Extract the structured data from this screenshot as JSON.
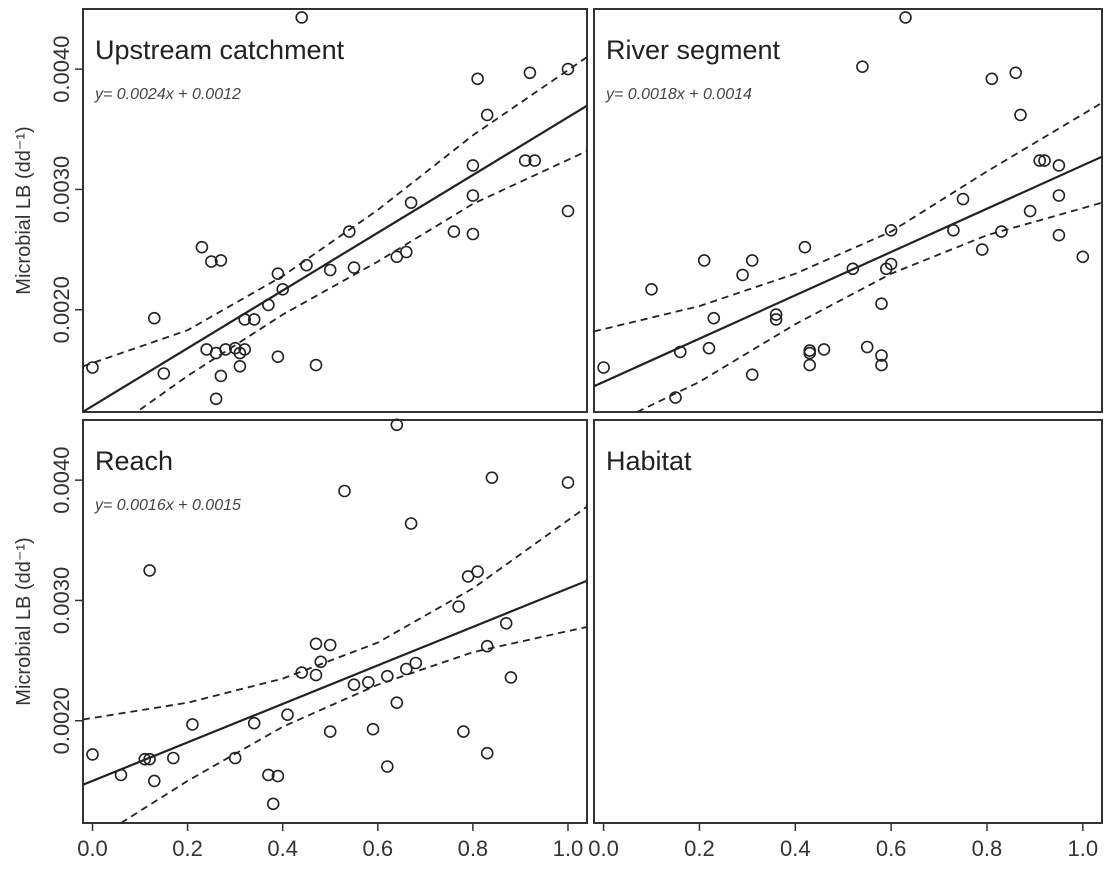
{
  "figure": {
    "background": "#ffffff",
    "ink": "#222222"
  },
  "chart_data": [
    {
      "type": "scatter",
      "title": "Upstream catchment",
      "equation": "y= 0.0024x + 0.0012",
      "ylabel": "Microbial LB (dd⁻¹)",
      "xlabel": "",
      "xlim": [
        -0.02,
        1.04
      ],
      "ylim": [
        0.00115,
        0.0045
      ],
      "xticks": [
        "0.0",
        "0.2",
        "0.4",
        "0.6",
        "0.8",
        "1.0"
      ],
      "yticks": [
        "0.0020",
        "0.0030",
        "0.0040"
      ],
      "fit": {
        "slope": 0.0024,
        "intercept": 0.0012
      },
      "ci_upper": [
        [
          -0.02,
          0.00153
        ],
        [
          0.2,
          0.00183
        ],
        [
          0.4,
          0.00228
        ],
        [
          0.6,
          0.00283
        ],
        [
          0.8,
          0.00345
        ],
        [
          1.04,
          0.0041
        ]
      ],
      "ci_lower": [
        [
          0.1,
          0.00117
        ],
        [
          0.2,
          0.00145
        ],
        [
          0.4,
          0.00196
        ],
        [
          0.6,
          0.0024
        ],
        [
          0.8,
          0.00288
        ],
        [
          1.04,
          0.00332
        ]
      ],
      "points": [
        [
          0.0,
          0.00152
        ],
        [
          0.13,
          0.00193
        ],
        [
          0.15,
          0.00147
        ],
        [
          0.23,
          0.00252
        ],
        [
          0.24,
          0.00167
        ],
        [
          0.25,
          0.0024
        ],
        [
          0.26,
          0.00164
        ],
        [
          0.26,
          0.00126
        ],
        [
          0.27,
          0.00241
        ],
        [
          0.27,
          0.00145
        ],
        [
          0.28,
          0.00167
        ],
        [
          0.3,
          0.00168
        ],
        [
          0.31,
          0.00164
        ],
        [
          0.31,
          0.00153
        ],
        [
          0.32,
          0.00192
        ],
        [
          0.32,
          0.00167
        ],
        [
          0.34,
          0.00192
        ],
        [
          0.37,
          0.00204
        ],
        [
          0.39,
          0.0023
        ],
        [
          0.39,
          0.00161
        ],
        [
          0.4,
          0.00217
        ],
        [
          0.44,
          0.00443
        ],
        [
          0.45,
          0.00237
        ],
        [
          0.47,
          0.00154
        ],
        [
          0.5,
          0.00233
        ],
        [
          0.54,
          0.00265
        ],
        [
          0.55,
          0.00235
        ],
        [
          0.64,
          0.00244
        ],
        [
          0.66,
          0.00248
        ],
        [
          0.67,
          0.00289
        ],
        [
          0.76,
          0.00265
        ],
        [
          0.8,
          0.0032
        ],
        [
          0.8,
          0.00295
        ],
        [
          0.8,
          0.00263
        ],
        [
          0.81,
          0.00392
        ],
        [
          0.83,
          0.00362
        ],
        [
          0.91,
          0.00324
        ],
        [
          0.92,
          0.00397
        ],
        [
          0.93,
          0.00324
        ],
        [
          1.0,
          0.00282
        ],
        [
          1.0,
          0.004
        ]
      ]
    },
    {
      "type": "scatter",
      "title": "River segment",
      "equation": "y= 0.0018x + 0.0014",
      "ylabel": "",
      "xlabel": "",
      "xlim": [
        -0.02,
        1.04
      ],
      "ylim": [
        0.00115,
        0.0045
      ],
      "xticks": [
        "0.0",
        "0.2",
        "0.4",
        "0.6",
        "0.8",
        "1.0"
      ],
      "yticks": [
        "0.0020",
        "0.0030",
        "0.0040"
      ],
      "fit": {
        "slope": 0.0018,
        "intercept": 0.0014
      },
      "ci_upper": [
        [
          -0.02,
          0.00182
        ],
        [
          0.2,
          0.00203
        ],
        [
          0.4,
          0.0023
        ],
        [
          0.6,
          0.00265
        ],
        [
          0.8,
          0.00315
        ],
        [
          1.04,
          0.00372
        ]
      ],
      "ci_lower": [
        [
          0.07,
          0.00115
        ],
        [
          0.2,
          0.0014
        ],
        [
          0.4,
          0.00188
        ],
        [
          0.6,
          0.0023
        ],
        [
          0.8,
          0.00262
        ],
        [
          1.04,
          0.00289
        ]
      ],
      "points": [
        [
          0.0,
          0.00152
        ],
        [
          0.1,
          0.00217
        ],
        [
          0.15,
          0.00127
        ],
        [
          0.16,
          0.00165
        ],
        [
          0.21,
          0.00241
        ],
        [
          0.22,
          0.00168
        ],
        [
          0.23,
          0.00193
        ],
        [
          0.29,
          0.00229
        ],
        [
          0.31,
          0.00241
        ],
        [
          0.31,
          0.00146
        ],
        [
          0.36,
          0.00192
        ],
        [
          0.36,
          0.00196
        ],
        [
          0.42,
          0.00252
        ],
        [
          0.43,
          0.00166
        ],
        [
          0.43,
          0.00164
        ],
        [
          0.43,
          0.00154
        ],
        [
          0.46,
          0.00167
        ],
        [
          0.52,
          0.00234
        ],
        [
          0.54,
          0.00402
        ],
        [
          0.55,
          0.00169
        ],
        [
          0.58,
          0.00205
        ],
        [
          0.58,
          0.00154
        ],
        [
          0.58,
          0.00162
        ],
        [
          0.59,
          0.00234
        ],
        [
          0.6,
          0.00238
        ],
        [
          0.6,
          0.00266
        ],
        [
          0.63,
          0.00443
        ],
        [
          0.73,
          0.00266
        ],
        [
          0.75,
          0.00292
        ],
        [
          0.79,
          0.0025
        ],
        [
          0.81,
          0.00392
        ],
        [
          0.83,
          0.00265
        ],
        [
          0.86,
          0.00397
        ],
        [
          0.87,
          0.00362
        ],
        [
          0.89,
          0.00282
        ],
        [
          0.91,
          0.00324
        ],
        [
          0.92,
          0.00324
        ],
        [
          0.95,
          0.0032
        ],
        [
          0.95,
          0.00262
        ],
        [
          0.95,
          0.00295
        ],
        [
          1.0,
          0.00244
        ]
      ]
    },
    {
      "type": "scatter",
      "title": "Reach",
      "equation": "y= 0.0016x + 0.0015",
      "ylabel": "Microbial LB (dd⁻¹)",
      "xlabel": "",
      "xlim": [
        -0.02,
        1.04
      ],
      "ylim": [
        0.00115,
        0.0045
      ],
      "xticks": [
        "0.0",
        "0.2",
        "0.4",
        "0.6",
        "0.8",
        "1.0"
      ],
      "yticks": [
        "0.0020",
        "0.0030",
        "0.0040"
      ],
      "fit": {
        "slope": 0.0016,
        "intercept": 0.0015
      },
      "ci_upper": [
        [
          -0.02,
          0.00201
        ],
        [
          0.2,
          0.00215
        ],
        [
          0.4,
          0.00235
        ],
        [
          0.6,
          0.00265
        ],
        [
          0.8,
          0.0031
        ],
        [
          1.04,
          0.00378
        ]
      ],
      "ci_lower": [
        [
          0.06,
          0.00115
        ],
        [
          0.2,
          0.0015
        ],
        [
          0.4,
          0.00195
        ],
        [
          0.6,
          0.0023
        ],
        [
          0.8,
          0.00257
        ],
        [
          1.04,
          0.00278
        ]
      ],
      "points": [
        [
          0.0,
          0.00172
        ],
        [
          0.06,
          0.00155
        ],
        [
          0.11,
          0.00168
        ],
        [
          0.12,
          0.00168
        ],
        [
          0.12,
          0.00325
        ],
        [
          0.13,
          0.0015
        ],
        [
          0.17,
          0.00169
        ],
        [
          0.21,
          0.00197
        ],
        [
          0.3,
          0.00169
        ],
        [
          0.34,
          0.00198
        ],
        [
          0.37,
          0.00155
        ],
        [
          0.38,
          0.00131
        ],
        [
          0.39,
          0.00154
        ],
        [
          0.41,
          0.00205
        ],
        [
          0.44,
          0.0024
        ],
        [
          0.47,
          0.00264
        ],
        [
          0.47,
          0.00238
        ],
        [
          0.48,
          0.00249
        ],
        [
          0.5,
          0.00263
        ],
        [
          0.5,
          0.00191
        ],
        [
          0.53,
          0.00391
        ],
        [
          0.55,
          0.0023
        ],
        [
          0.58,
          0.00232
        ],
        [
          0.59,
          0.00193
        ],
        [
          0.62,
          0.00237
        ],
        [
          0.62,
          0.00162
        ],
        [
          0.64,
          0.00446
        ],
        [
          0.64,
          0.00215
        ],
        [
          0.66,
          0.00243
        ],
        [
          0.67,
          0.00364
        ],
        [
          0.68,
          0.00248
        ],
        [
          0.77,
          0.00295
        ],
        [
          0.78,
          0.00191
        ],
        [
          0.79,
          0.0032
        ],
        [
          0.81,
          0.00324
        ],
        [
          0.83,
          0.00262
        ],
        [
          0.83,
          0.00173
        ],
        [
          0.84,
          0.00402
        ],
        [
          0.87,
          0.00281
        ],
        [
          0.88,
          0.00236
        ],
        [
          1.0,
          0.00398
        ]
      ]
    },
    {
      "type": "scatter",
      "title": "Habitat",
      "equation": "",
      "ylabel": "",
      "xlabel": "",
      "xlim": [
        -0.02,
        1.04
      ],
      "ylim": [
        0.00115,
        0.0045
      ],
      "xticks": [
        "0.0",
        "0.2",
        "0.4",
        "0.6",
        "0.8",
        "1.0"
      ],
      "yticks": [
        "0.0020",
        "0.0030",
        "0.0040"
      ],
      "points": []
    }
  ]
}
